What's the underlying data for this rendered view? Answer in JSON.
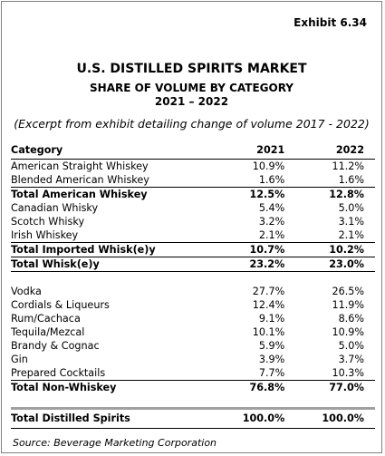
{
  "exhibit": "Exhibit 6.34",
  "title_line1": "U.S. DISTILLED SPIRITS MARKET",
  "title_line2": "SHARE OF VOLUME BY CATEGORY",
  "title_line3": "2021 – 2022",
  "subtitle": "(Excerpt from exhibit detailing change of volume 2017 - 2022)",
  "columns": {
    "category": "Category",
    "y2021": "2021",
    "y2022": "2022"
  },
  "rows": [
    {
      "label": "American Straight Whiskey",
      "v2021": "10.9%",
      "v2022": "11.2%"
    },
    {
      "label": "Blended American Whiskey",
      "v2021": "1.6%",
      "v2022": "1.6%"
    },
    {
      "label": "Total American Whiskey",
      "v2021": "12.5%",
      "v2022": "12.8%"
    },
    {
      "label": "Canadian Whisky",
      "v2021": "5.4%",
      "v2022": "5.0%"
    },
    {
      "label": "Scotch Whisky",
      "v2021": "3.2%",
      "v2022": "3.1%"
    },
    {
      "label": "Irish Whiskey",
      "v2021": "2.1%",
      "v2022": "2.1%"
    },
    {
      "label": "Total Imported Whisk(e)y",
      "v2021": "10.7%",
      "v2022": "10.2%"
    },
    {
      "label": "Total Whisk(e)y",
      "v2021": "23.2%",
      "v2022": "23.0%"
    },
    {
      "label": "Vodka",
      "v2021": "27.7%",
      "v2022": "26.5%"
    },
    {
      "label": "Cordials & Liqueurs",
      "v2021": "12.4%",
      "v2022": "11.9%"
    },
    {
      "label": "Rum/Cachaca",
      "v2021": "9.1%",
      "v2022": "8.6%"
    },
    {
      "label": "Tequila/Mezcal",
      "v2021": "10.1%",
      "v2022": "10.9%"
    },
    {
      "label": "Brandy & Cognac",
      "v2021": "5.9%",
      "v2022": "5.0%"
    },
    {
      "label": "Gin",
      "v2021": "3.9%",
      "v2022": "3.7%"
    },
    {
      "label": "Prepared Cocktails",
      "v2021": "7.7%",
      "v2022": "10.3%"
    },
    {
      "label": "Total Non-Whiskey",
      "v2021": "76.8%",
      "v2022": "77.0%"
    },
    {
      "label": "Total Distilled Spirits",
      "v2021": "100.0%",
      "v2022": "100.0%"
    }
  ],
  "source": "Source:  Beverage Marketing Corporation"
}
